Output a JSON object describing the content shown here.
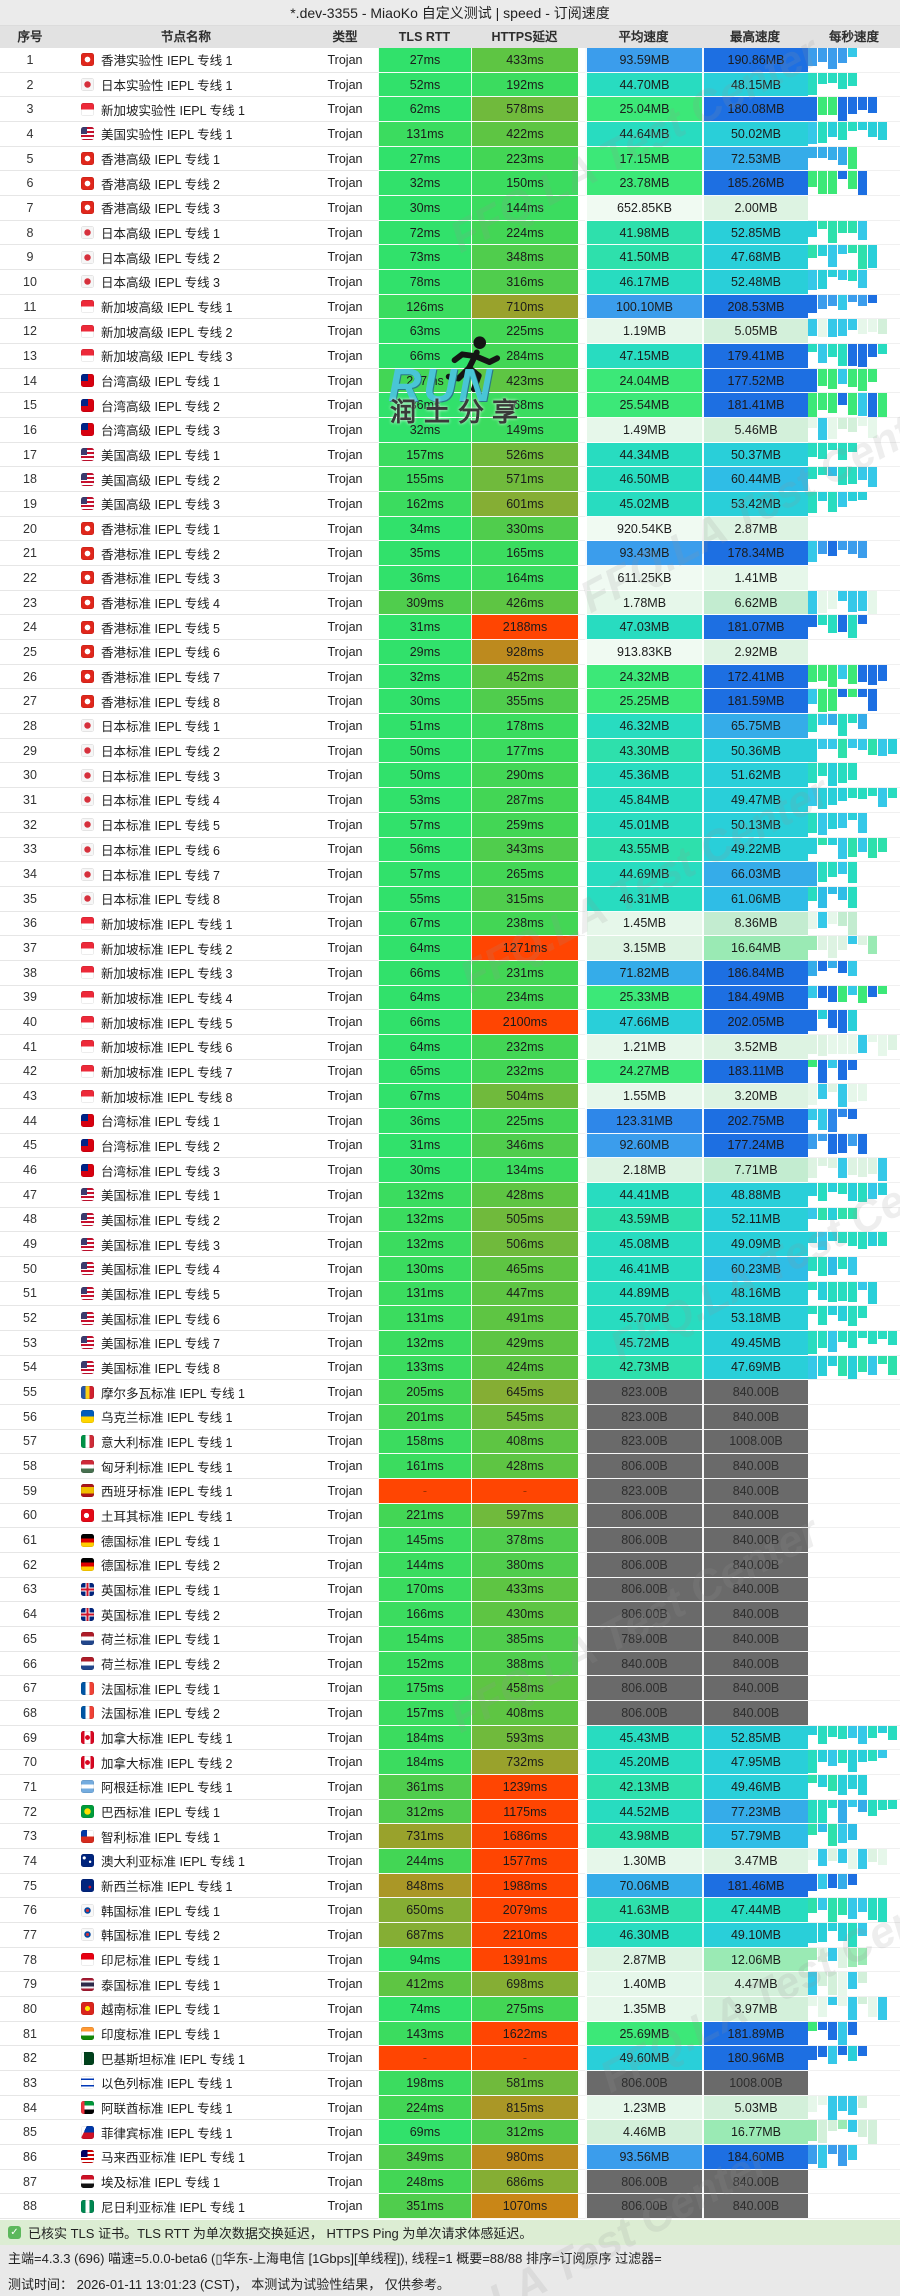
{
  "title": "*.dev-3355 - MiaoKo 自定义测试 | speed - 订阅速度",
  "columns": [
    "序号",
    "节点名称",
    "类型",
    "TLS RTT",
    "HTTPS延迟",
    "平均速度",
    "最高速度",
    "每秒速度"
  ],
  "table": {
    "rows": [
      [
        1,
        "hk",
        "香港实验性 IEPL 专线 1",
        "Trojan",
        "27ms",
        "433ms",
        "93.59MB",
        "190.86MB"
      ],
      [
        2,
        "jp",
        "日本实验性 IEPL 专线 1",
        "Trojan",
        "52ms",
        "192ms",
        "44.70MB",
        "48.15MB"
      ],
      [
        3,
        "sg",
        "新加坡实验性 IEPL 专线 1",
        "Trojan",
        "62ms",
        "578ms",
        "25.04MB",
        "180.08MB"
      ],
      [
        4,
        "us",
        "美国实验性 IEPL 专线 1",
        "Trojan",
        "131ms",
        "422ms",
        "44.64MB",
        "50.02MB"
      ],
      [
        5,
        "hk",
        "香港高级 IEPL 专线 1",
        "Trojan",
        "27ms",
        "223ms",
        "17.15MB",
        "72.53MB"
      ],
      [
        6,
        "hk",
        "香港高级 IEPL 专线 2",
        "Trojan",
        "32ms",
        "150ms",
        "23.78MB",
        "185.26MB"
      ],
      [
        7,
        "hk",
        "香港高级 IEPL 专线 3",
        "Trojan",
        "30ms",
        "144ms",
        "652.85KB",
        "2.00MB"
      ],
      [
        8,
        "jp",
        "日本高级 IEPL 专线 1",
        "Trojan",
        "72ms",
        "224ms",
        "41.98MB",
        "52.85MB"
      ],
      [
        9,
        "jp",
        "日本高级 IEPL 专线 2",
        "Trojan",
        "73ms",
        "348ms",
        "41.50MB",
        "47.68MB"
      ],
      [
        10,
        "jp",
        "日本高级 IEPL 专线 3",
        "Trojan",
        "78ms",
        "316ms",
        "46.17MB",
        "52.48MB"
      ],
      [
        11,
        "sg",
        "新加坡高级 IEPL 专线 1",
        "Trojan",
        "126ms",
        "710ms",
        "100.10MB",
        "208.53MB"
      ],
      [
        12,
        "sg",
        "新加坡高级 IEPL 专线 2",
        "Trojan",
        "63ms",
        "225ms",
        "1.19MB",
        "5.05MB"
      ],
      [
        13,
        "sg",
        "新加坡高级 IEPL 专线 3",
        "Trojan",
        "66ms",
        "284ms",
        "47.15MB",
        "179.41MB"
      ],
      [
        14,
        "tw",
        "台湾高级 IEPL 专线 1",
        "Trojan",
        "267ms",
        "423ms",
        "24.04MB",
        "177.52MB"
      ],
      [
        15,
        "tw",
        "台湾高级 IEPL 专线 2",
        "Trojan",
        "36ms",
        "168ms",
        "25.54MB",
        "181.41MB"
      ],
      [
        16,
        "tw",
        "台湾高级 IEPL 专线 3",
        "Trojan",
        "32ms",
        "149ms",
        "1.49MB",
        "5.46MB"
      ],
      [
        17,
        "us",
        "美国高级 IEPL 专线 1",
        "Trojan",
        "157ms",
        "526ms",
        "44.34MB",
        "50.37MB"
      ],
      [
        18,
        "us",
        "美国高级 IEPL 专线 2",
        "Trojan",
        "155ms",
        "571ms",
        "46.50MB",
        "60.44MB"
      ],
      [
        19,
        "us",
        "美国高级 IEPL 专线 3",
        "Trojan",
        "162ms",
        "601ms",
        "45.02MB",
        "53.42MB"
      ],
      [
        20,
        "hk",
        "香港标准 IEPL 专线 1",
        "Trojan",
        "34ms",
        "330ms",
        "920.54KB",
        "2.87MB"
      ],
      [
        21,
        "hk",
        "香港标准 IEPL 专线 2",
        "Trojan",
        "35ms",
        "165ms",
        "93.43MB",
        "178.34MB"
      ],
      [
        22,
        "hk",
        "香港标准 IEPL 专线 3",
        "Trojan",
        "36ms",
        "164ms",
        "611.25KB",
        "1.41MB"
      ],
      [
        23,
        "hk",
        "香港标准 IEPL 专线 4",
        "Trojan",
        "309ms",
        "426ms",
        "1.78MB",
        "6.62MB"
      ],
      [
        24,
        "hk",
        "香港标准 IEPL 专线 5",
        "Trojan",
        "31ms",
        "2188ms",
        "47.03MB",
        "181.07MB"
      ],
      [
        25,
        "hk",
        "香港标准 IEPL 专线 6",
        "Trojan",
        "29ms",
        "928ms",
        "913.83KB",
        "2.92MB"
      ],
      [
        26,
        "hk",
        "香港标准 IEPL 专线 7",
        "Trojan",
        "32ms",
        "452ms",
        "24.32MB",
        "172.41MB"
      ],
      [
        27,
        "hk",
        "香港标准 IEPL 专线 8",
        "Trojan",
        "30ms",
        "355ms",
        "25.25MB",
        "181.59MB"
      ],
      [
        28,
        "jp",
        "日本标准 IEPL 专线 1",
        "Trojan",
        "51ms",
        "178ms",
        "46.32MB",
        "65.75MB"
      ],
      [
        29,
        "jp",
        "日本标准 IEPL 专线 2",
        "Trojan",
        "50ms",
        "177ms",
        "43.30MB",
        "50.36MB"
      ],
      [
        30,
        "jp",
        "日本标准 IEPL 专线 3",
        "Trojan",
        "50ms",
        "290ms",
        "45.36MB",
        "51.62MB"
      ],
      [
        31,
        "jp",
        "日本标准 IEPL 专线 4",
        "Trojan",
        "53ms",
        "287ms",
        "45.84MB",
        "49.47MB"
      ],
      [
        32,
        "jp",
        "日本标准 IEPL 专线 5",
        "Trojan",
        "57ms",
        "259ms",
        "45.01MB",
        "50.13MB"
      ],
      [
        33,
        "jp",
        "日本标准 IEPL 专线 6",
        "Trojan",
        "56ms",
        "343ms",
        "43.55MB",
        "49.22MB"
      ],
      [
        34,
        "jp",
        "日本标准 IEPL 专线 7",
        "Trojan",
        "57ms",
        "265ms",
        "44.69MB",
        "66.03MB"
      ],
      [
        35,
        "jp",
        "日本标准 IEPL 专线 8",
        "Trojan",
        "55ms",
        "315ms",
        "46.31MB",
        "61.06MB"
      ],
      [
        36,
        "sg",
        "新加坡标准 IEPL 专线 1",
        "Trojan",
        "67ms",
        "238ms",
        "1.45MB",
        "8.36MB"
      ],
      [
        37,
        "sg",
        "新加坡标准 IEPL 专线 2",
        "Trojan",
        "64ms",
        "1271ms",
        "3.15MB",
        "16.64MB"
      ],
      [
        38,
        "sg",
        "新加坡标准 IEPL 专线 3",
        "Trojan",
        "66ms",
        "231ms",
        "71.82MB",
        "186.84MB"
      ],
      [
        39,
        "sg",
        "新加坡标准 IEPL 专线 4",
        "Trojan",
        "64ms",
        "234ms",
        "25.33MB",
        "184.49MB"
      ],
      [
        40,
        "sg",
        "新加坡标准 IEPL 专线 5",
        "Trojan",
        "66ms",
        "2100ms",
        "47.66MB",
        "202.05MB"
      ],
      [
        41,
        "sg",
        "新加坡标准 IEPL 专线 6",
        "Trojan",
        "64ms",
        "232ms",
        "1.21MB",
        "3.52MB"
      ],
      [
        42,
        "sg",
        "新加坡标准 IEPL 专线 7",
        "Trojan",
        "65ms",
        "232ms",
        "24.27MB",
        "183.11MB"
      ],
      [
        43,
        "sg",
        "新加坡标准 IEPL 专线 8",
        "Trojan",
        "67ms",
        "504ms",
        "1.55MB",
        "3.20MB"
      ],
      [
        44,
        "tw",
        "台湾标准 IEPL 专线 1",
        "Trojan",
        "36ms",
        "225ms",
        "123.31MB",
        "202.75MB"
      ],
      [
        45,
        "tw",
        "台湾标准 IEPL 专线 2",
        "Trojan",
        "31ms",
        "346ms",
        "92.60MB",
        "177.24MB"
      ],
      [
        46,
        "tw",
        "台湾标准 IEPL 专线 3",
        "Trojan",
        "30ms",
        "134ms",
        "2.18MB",
        "7.71MB"
      ],
      [
        47,
        "us",
        "美国标准 IEPL 专线 1",
        "Trojan",
        "132ms",
        "428ms",
        "44.41MB",
        "48.88MB"
      ],
      [
        48,
        "us",
        "美国标准 IEPL 专线 2",
        "Trojan",
        "132ms",
        "505ms",
        "43.59MB",
        "52.11MB"
      ],
      [
        49,
        "us",
        "美国标准 IEPL 专线 3",
        "Trojan",
        "132ms",
        "506ms",
        "45.08MB",
        "49.09MB"
      ],
      [
        50,
        "us",
        "美国标准 IEPL 专线 4",
        "Trojan",
        "130ms",
        "465ms",
        "46.41MB",
        "60.23MB"
      ],
      [
        51,
        "us",
        "美国标准 IEPL 专线 5",
        "Trojan",
        "131ms",
        "447ms",
        "44.89MB",
        "48.16MB"
      ],
      [
        52,
        "us",
        "美国标准 IEPL 专线 6",
        "Trojan",
        "131ms",
        "491ms",
        "45.70MB",
        "53.18MB"
      ],
      [
        53,
        "us",
        "美国标准 IEPL 专线 7",
        "Trojan",
        "132ms",
        "429ms",
        "45.72MB",
        "49.45MB"
      ],
      [
        54,
        "us",
        "美国标准 IEPL 专线 8",
        "Trojan",
        "133ms",
        "424ms",
        "42.73MB",
        "47.69MB"
      ],
      [
        55,
        "md",
        "摩尔多瓦标准 IEPL 专线 1",
        "Trojan",
        "205ms",
        "645ms",
        "823.00B",
        "840.00B"
      ],
      [
        56,
        "ua",
        "乌克兰标准 IEPL 专线 1",
        "Trojan",
        "201ms",
        "545ms",
        "823.00B",
        "840.00B"
      ],
      [
        57,
        "it",
        "意大利标准 IEPL 专线 1",
        "Trojan",
        "158ms",
        "408ms",
        "823.00B",
        "1008.00B"
      ],
      [
        58,
        "hu",
        "匈牙利标准 IEPL 专线 1",
        "Trojan",
        "161ms",
        "428ms",
        "806.00B",
        "840.00B"
      ],
      [
        59,
        "es",
        "西班牙标准 IEPL 专线 1",
        "Trojan",
        "-",
        "-",
        "823.00B",
        "840.00B"
      ],
      [
        60,
        "tr",
        "土耳其标准 IEPL 专线 1",
        "Trojan",
        "221ms",
        "597ms",
        "806.00B",
        "840.00B"
      ],
      [
        61,
        "de",
        "德国标准 IEPL 专线 1",
        "Trojan",
        "145ms",
        "378ms",
        "806.00B",
        "840.00B"
      ],
      [
        62,
        "de",
        "德国标准 IEPL 专线 2",
        "Trojan",
        "144ms",
        "380ms",
        "806.00B",
        "840.00B"
      ],
      [
        63,
        "gb",
        "英国标准 IEPL 专线 1",
        "Trojan",
        "170ms",
        "433ms",
        "806.00B",
        "840.00B"
      ],
      [
        64,
        "gb",
        "英国标准 IEPL 专线 2",
        "Trojan",
        "166ms",
        "430ms",
        "806.00B",
        "840.00B"
      ],
      [
        65,
        "nl",
        "荷兰标准 IEPL 专线 1",
        "Trojan",
        "154ms",
        "385ms",
        "789.00B",
        "840.00B"
      ],
      [
        66,
        "nl",
        "荷兰标准 IEPL 专线 2",
        "Trojan",
        "152ms",
        "388ms",
        "840.00B",
        "840.00B"
      ],
      [
        67,
        "fr",
        "法国标准 IEPL 专线 1",
        "Trojan",
        "175ms",
        "458ms",
        "806.00B",
        "840.00B"
      ],
      [
        68,
        "fr",
        "法国标准 IEPL 专线 2",
        "Trojan",
        "157ms",
        "408ms",
        "806.00B",
        "840.00B"
      ],
      [
        69,
        "ca",
        "加拿大标准 IEPL 专线 1",
        "Trojan",
        "184ms",
        "593ms",
        "45.43MB",
        "52.85MB"
      ],
      [
        70,
        "ca",
        "加拿大标准 IEPL 专线 2",
        "Trojan",
        "184ms",
        "732ms",
        "45.20MB",
        "47.95MB"
      ],
      [
        71,
        "ar",
        "阿根廷标准 IEPL 专线 1",
        "Trojan",
        "361ms",
        "1239ms",
        "42.13MB",
        "49.46MB"
      ],
      [
        72,
        "br",
        "巴西标准 IEPL 专线 1",
        "Trojan",
        "312ms",
        "1175ms",
        "44.52MB",
        "77.23MB"
      ],
      [
        73,
        "cl",
        "智利标准 IEPL 专线 1",
        "Trojan",
        "731ms",
        "1686ms",
        "43.98MB",
        "57.79MB"
      ],
      [
        74,
        "au",
        "澳大利亚标准 IEPL 专线 1",
        "Trojan",
        "244ms",
        "1577ms",
        "1.30MB",
        "3.47MB"
      ],
      [
        75,
        "nz",
        "新西兰标准 IEPL 专线 1",
        "Trojan",
        "848ms",
        "1988ms",
        "70.06MB",
        "181.46MB"
      ],
      [
        76,
        "kr",
        "韩国标准 IEPL 专线 1",
        "Trojan",
        "650ms",
        "2079ms",
        "41.63MB",
        "47.44MB"
      ],
      [
        77,
        "kr",
        "韩国标准 IEPL 专线 2",
        "Trojan",
        "687ms",
        "2210ms",
        "46.30MB",
        "49.10MB"
      ],
      [
        78,
        "id",
        "印尼标准 IEPL 专线 1",
        "Trojan",
        "94ms",
        "1391ms",
        "2.87MB",
        "12.06MB"
      ],
      [
        79,
        "th",
        "泰国标准 IEPL 专线 1",
        "Trojan",
        "412ms",
        "698ms",
        "1.40MB",
        "4.47MB"
      ],
      [
        80,
        "vn",
        "越南标准 IEPL 专线 1",
        "Trojan",
        "74ms",
        "275ms",
        "1.35MB",
        "3.97MB"
      ],
      [
        81,
        "in",
        "印度标准 IEPL 专线 1",
        "Trojan",
        "143ms",
        "1622ms",
        "25.69MB",
        "181.89MB"
      ],
      [
        82,
        "pk",
        "巴基斯坦标准 IEPL 专线 1",
        "Trojan",
        "-",
        "-",
        "49.60MB",
        "180.96MB"
      ],
      [
        83,
        "il",
        "以色列标准 IEPL 专线 1",
        "Trojan",
        "198ms",
        "581ms",
        "806.00B",
        "1008.00B"
      ],
      [
        84,
        "ae",
        "阿联酋标准 IEPL 专线 1",
        "Trojan",
        "224ms",
        "815ms",
        "1.23MB",
        "5.03MB"
      ],
      [
        85,
        "ph",
        "菲律宾标准 IEPL 专线 1",
        "Trojan",
        "69ms",
        "312ms",
        "4.46MB",
        "16.77MB"
      ],
      [
        86,
        "my",
        "马来西亚标准 IEPL 专线 1",
        "Trojan",
        "349ms",
        "980ms",
        "93.56MB",
        "184.60MB"
      ],
      [
        87,
        "eg",
        "埃及标准 IEPL 专线 1",
        "Trojan",
        "248ms",
        "686ms",
        "806.00B",
        "840.00B"
      ],
      [
        88,
        "ng",
        "尼日利亚标准 IEPL 专线 1",
        "Trojan",
        "351ms",
        "1070ms",
        "806.00B",
        "840.00B"
      ]
    ]
  },
  "footer": {
    "line1": "已核实 TLS 证书。TLS RTT 为单次数据交换延迟， HTTPS Ping 为单次请求体感延迟。",
    "line2": "主端=4.3.3 (696) 喵速=5.0.0-beta6 (▯华东-上海电信 [1Gbps][单线程]), 线程=1 概要=88/88 排序=订阅原序 过滤器=",
    "line3": "测试时间： 2026-01-11 13:01:23 (CST)， 本测试为试验性结果， 仅供参考。"
  },
  "watermark": {
    "tiled_text": "FFQ.LA Test Center",
    "run_text": "RUN",
    "share_text": "润土分享"
  },
  "colors": {
    "latency_scale": [
      {
        "max": 100,
        "color": "#31e16b"
      },
      {
        "max": 200,
        "color": "#3bdc5f"
      },
      {
        "max": 300,
        "color": "#43d655"
      },
      {
        "max": 400,
        "color": "#50cd4d"
      },
      {
        "max": 500,
        "color": "#5ec543"
      },
      {
        "max": 600,
        "color": "#70ba3c"
      },
      {
        "max": 700,
        "color": "#85ae34"
      },
      {
        "max": 800,
        "color": "#99a22c"
      },
      {
        "max": 900,
        "color": "#aa9726"
      },
      {
        "max": 1000,
        "color": "#bd8a1e"
      },
      {
        "max": 1100,
        "color": "#c98617"
      },
      {
        "max": 999999,
        "color": "#ff4502"
      }
    ],
    "latency_fail": "#ff4502",
    "latency_fail_text": "#9c2f00",
    "speed_scale": [
      {
        "min": 130,
        "color": "#1d6fe2"
      },
      {
        "min": 110,
        "color": "#2e87e9"
      },
      {
        "min": 85,
        "color": "#3b9dec"
      },
      {
        "min": 63,
        "color": "#35ace9"
      },
      {
        "min": 56,
        "color": "#2fbde6"
      },
      {
        "min": 47.5,
        "color": "#29cfd9"
      },
      {
        "min": 44,
        "color": "#28dcc0"
      },
      {
        "min": 41,
        "color": "#2ee0ac"
      },
      {
        "min": 28,
        "color": "#33e59a"
      },
      {
        "min": 17,
        "color": "#3ce878"
      },
      {
        "min": 10,
        "color": "#9aeab4"
      },
      {
        "min": 6,
        "color": "#c3ecd0"
      },
      {
        "min": 3.6,
        "color": "#d3f0da"
      },
      {
        "min": 2,
        "color": "#ddf3e2"
      },
      {
        "min": 1,
        "color": "#e6f7ea"
      },
      {
        "min": 0,
        "color": "#f0faf2"
      }
    ],
    "speed_bytes_cell": "#6a6a6a",
    "speed_bytes_text": "#2d2d2d",
    "spark_cyan": "#35c8e8",
    "check_green": "#5cb85c"
  }
}
